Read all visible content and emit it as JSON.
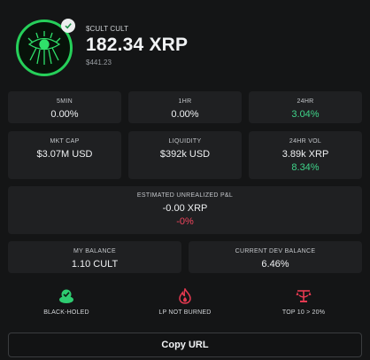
{
  "header": {
    "ticker": "$CULT CULT",
    "amount": "182.34 XRP",
    "usd_value": "$441.23"
  },
  "stats": {
    "min5": {
      "label": "5MIN",
      "value": "0.00%"
    },
    "hr1": {
      "label": "1HR",
      "value": "0.00%"
    },
    "hr24": {
      "label": "24HR",
      "value": "3.04%"
    },
    "mkt_cap": {
      "label": "MKT CAP",
      "value": "$3.07M USD"
    },
    "liquidity": {
      "label": "LIQUIDITY",
      "value": "$392k USD"
    },
    "vol24": {
      "label": "24HR VOL",
      "value": "3.89k XRP",
      "change": "8.34%"
    }
  },
  "pnl": {
    "label": "ESTIMATED UNREALIZED P&L",
    "value": "-0.00 XRP",
    "percent": "-0%"
  },
  "balances": {
    "my": {
      "label": "MY BALANCE",
      "value": "1.10 CULT"
    },
    "dev": {
      "label": "CURRENT DEV BALANCE",
      "value": "6.46%"
    }
  },
  "badges": [
    {
      "label": "BLACK-HOLED",
      "icon": "black-hole-check-icon",
      "color": "#2ecc71"
    },
    {
      "label": "LP NOT BURNED",
      "icon": "flame-icon",
      "color": "#e53950"
    },
    {
      "label": "TOP 10 > 20%",
      "icon": "scale-icon",
      "color": "#e53950"
    }
  ],
  "copy_button": "Copy URL",
  "colors": {
    "positive": "#3fd48a",
    "negative": "#f0455d",
    "accent": "#26d05a"
  }
}
